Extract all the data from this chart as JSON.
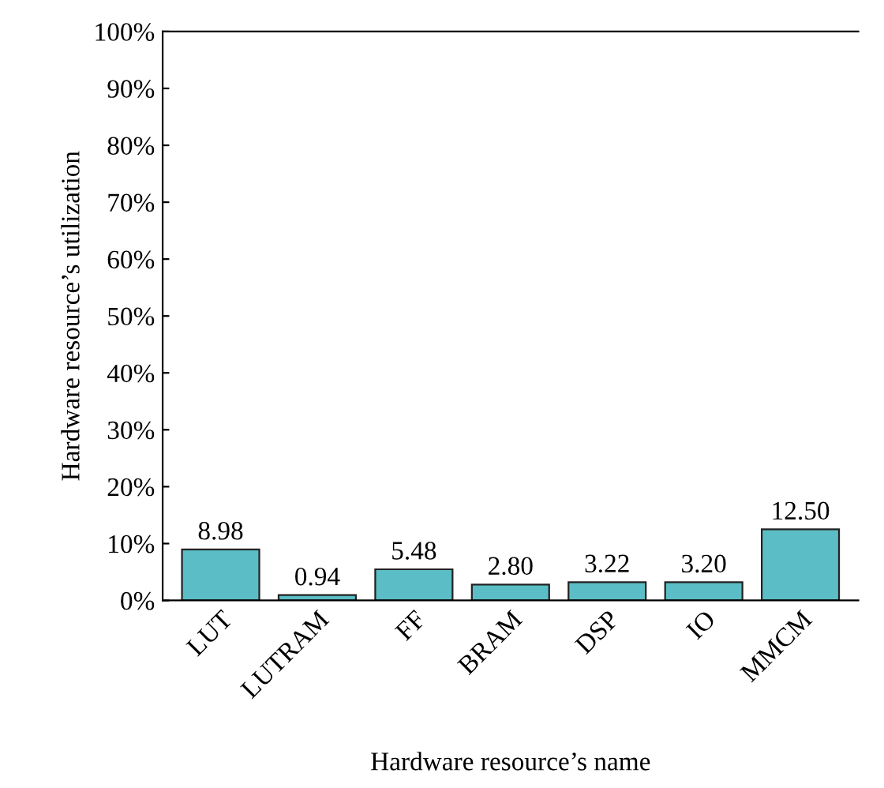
{
  "chart_data": {
    "type": "bar",
    "xlabel": "Hardware resource’s name",
    "ylabel": "Hardware resource’s utilization",
    "categories": [
      "LUT",
      "LUTRAM",
      "FF",
      "BRAM",
      "DSP",
      "IO",
      "MMCM"
    ],
    "values": [
      8.98,
      0.94,
      5.48,
      2.8,
      3.22,
      3.2,
      12.5
    ],
    "value_labels": [
      "8.98",
      "0.94",
      "5.48",
      "2.80",
      "3.22",
      "3.20",
      "12.50"
    ],
    "color": "#5bbdc5",
    "ylim": [
      0,
      100
    ],
    "yticks": [
      {
        "value": 0,
        "label": "0%"
      },
      {
        "value": 10,
        "label": "10%"
      },
      {
        "value": 20,
        "label": "20%"
      },
      {
        "value": 30,
        "label": "30%"
      },
      {
        "value": 40,
        "label": "40%"
      },
      {
        "value": 50,
        "label": "50%"
      },
      {
        "value": 60,
        "label": "60%"
      },
      {
        "value": 70,
        "label": "70%"
      },
      {
        "value": 80,
        "label": "80%"
      },
      {
        "value": 90,
        "label": "90%"
      },
      {
        "value": 100,
        "label": "100%"
      }
    ],
    "grid": false,
    "legend": false
  }
}
